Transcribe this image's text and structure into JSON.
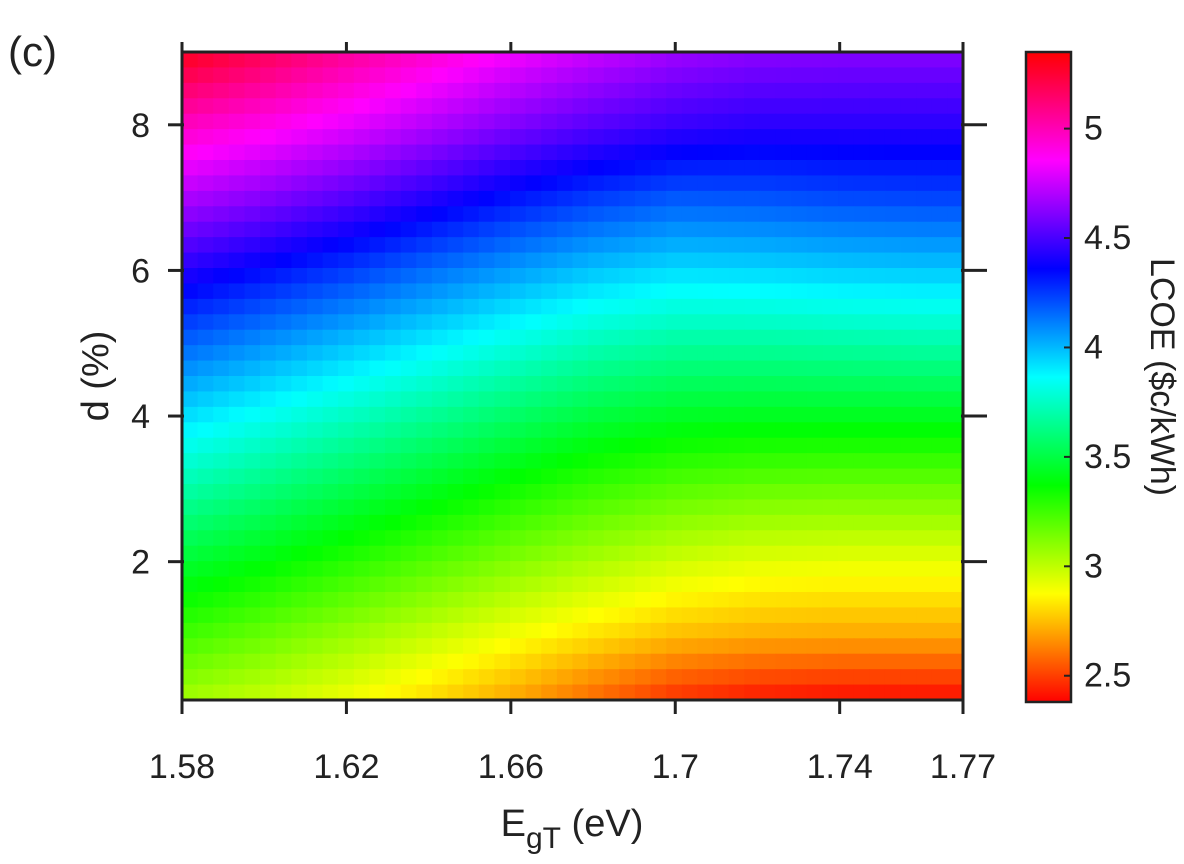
{
  "panel_label": "(c)",
  "chart_data": {
    "type": "heatmap",
    "title": "",
    "xlabel": {
      "main": "E",
      "sub": "gT",
      "unit": " (eV)"
    },
    "ylabel": "d (%)",
    "xlim": [
      1.58,
      1.77
    ],
    "ylim": [
      0.1,
      9.0
    ],
    "x_ticks": [
      "1.58",
      "1.62",
      "1.66",
      "1.7",
      "1.74",
      "1.77"
    ],
    "x_tick_values": [
      1.58,
      1.62,
      1.66,
      1.7,
      1.74,
      1.77
    ],
    "y_ticks": [
      "2",
      "4",
      "6",
      "8"
    ],
    "y_tick_values": [
      2,
      4,
      6,
      8
    ],
    "colorbar": {
      "label": "LCOE ($c/kWh)",
      "range": [
        2.38,
        5.35
      ],
      "ticks": [
        "2.5",
        "3",
        "3.5",
        "4",
        "4.5",
        "5"
      ],
      "tick_values": [
        2.5,
        3.0,
        3.5,
        4.0,
        4.5,
        5.0
      ],
      "colormap": [
        "#ff0000",
        "#ffff00",
        "#00ff00",
        "#00ffff",
        "#0000ff",
        "#ff00ff",
        "#ff0000"
      ]
    },
    "x": [
      1.58,
      1.6,
      1.62,
      1.64,
      1.66,
      1.68,
      1.7,
      1.72,
      1.74,
      1.76,
      1.77
    ],
    "y": [
      0.1,
      1,
      2,
      3,
      4,
      5,
      6,
      7,
      8,
      9
    ],
    "z": [
      [
        3.05,
        2.98,
        2.9,
        2.8,
        2.7,
        2.58,
        2.47,
        2.42,
        2.4,
        2.4,
        2.4
      ],
      [
        3.25,
        3.17,
        3.08,
        2.99,
        2.9,
        2.82,
        2.75,
        2.72,
        2.71,
        2.71,
        2.71
      ],
      [
        3.47,
        3.39,
        3.3,
        3.21,
        3.12,
        3.04,
        2.97,
        2.93,
        2.92,
        2.92,
        2.92
      ],
      [
        3.7,
        3.61,
        3.52,
        3.43,
        3.34,
        3.26,
        3.2,
        3.17,
        3.16,
        3.16,
        3.16
      ],
      [
        3.93,
        3.84,
        3.75,
        3.66,
        3.57,
        3.49,
        3.44,
        3.43,
        3.43,
        3.43,
        3.43
      ],
      [
        4.17,
        4.08,
        3.99,
        3.9,
        3.81,
        3.73,
        3.68,
        3.68,
        3.69,
        3.7,
        3.7
      ],
      [
        4.43,
        4.34,
        4.25,
        4.15,
        4.06,
        3.98,
        3.93,
        3.94,
        3.96,
        3.97,
        3.97
      ],
      [
        4.7,
        4.62,
        4.53,
        4.43,
        4.33,
        4.25,
        4.19,
        4.2,
        4.22,
        4.23,
        4.23
      ],
      [
        4.98,
        4.9,
        4.81,
        4.71,
        4.61,
        4.53,
        4.47,
        4.44,
        4.44,
        4.44,
        4.44
      ],
      [
        5.3,
        5.18,
        5.06,
        4.95,
        4.84,
        4.75,
        4.67,
        4.63,
        4.62,
        4.62,
        4.62
      ]
    ]
  }
}
